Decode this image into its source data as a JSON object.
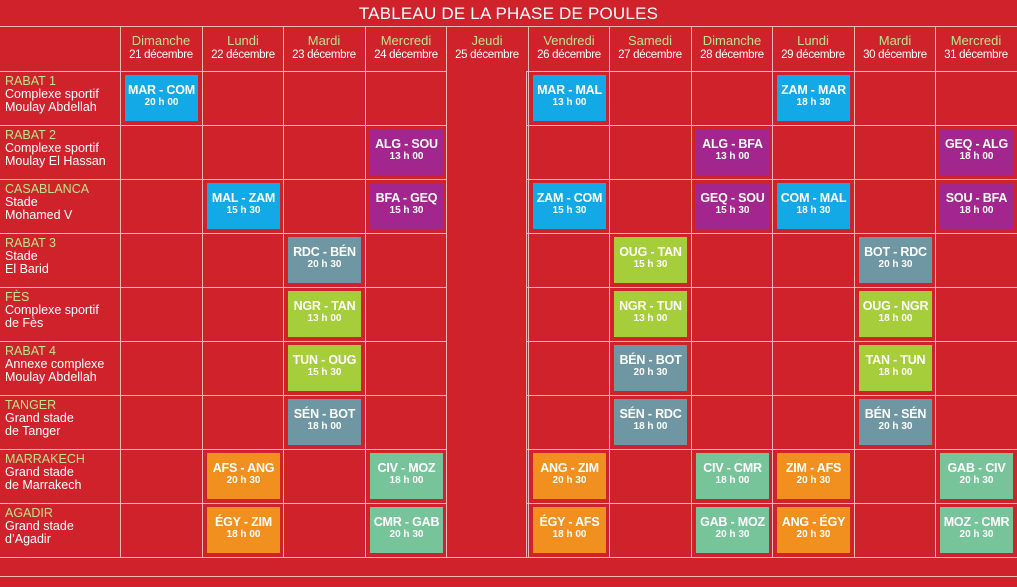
{
  "title": "TABLEAU DE LA PHASE DE POULES",
  "colors": {
    "background": "#d0222a",
    "blue": "#13a9e6",
    "purple": "#a3268f",
    "lime": "#a6cd3a",
    "slate": "#6e97a3",
    "orange": "#f1901e",
    "green": "#77c49a",
    "city_label": "#bfe38a"
  },
  "days": [
    {
      "name": "Dimanche",
      "date": "21 décembre"
    },
    {
      "name": "Lundi",
      "date": "22 décembre"
    },
    {
      "name": "Mardi",
      "date": "23 décembre"
    },
    {
      "name": "Mercredi",
      "date": "24 décembre"
    },
    {
      "name": "Jeudi",
      "date": "25 décembre"
    },
    {
      "name": "Vendredi",
      "date": "26 décembre"
    },
    {
      "name": "Samedi",
      "date": "27 décembre"
    },
    {
      "name": "Dimanche",
      "date": "28 décembre"
    },
    {
      "name": "Lundi",
      "date": "29 décembre"
    },
    {
      "name": "Mardi",
      "date": "30 décembre"
    },
    {
      "name": "Mercredi",
      "date": "31 décembre"
    }
  ],
  "venues": [
    {
      "city": "RABAT 1",
      "stadium_1": "Complexe sportif",
      "stadium_2": "Moulay Abdellah"
    },
    {
      "city": "RABAT 2",
      "stadium_1": "Complexe sportif",
      "stadium_2": "Moulay El Hassan"
    },
    {
      "city": "CASABLANCA",
      "stadium_1": "Stade",
      "stadium_2": "Mohamed V"
    },
    {
      "city": "RABAT 3",
      "stadium_1": "Stade",
      "stadium_2": "El Barid"
    },
    {
      "city": "FÈS",
      "stadium_1": "Complexe sportif",
      "stadium_2": "de Fès"
    },
    {
      "city": "RABAT 4",
      "stadium_1": "Annexe complexe",
      "stadium_2": "Moulay Abdellah"
    },
    {
      "city": "TANGER",
      "stadium_1": "Grand stade",
      "stadium_2": "de Tanger"
    },
    {
      "city": "MARRAKECH",
      "stadium_1": "Grand stade",
      "stadium_2": "de Marrakech"
    },
    {
      "city": "AGADIR",
      "stadium_1": "Grand stade",
      "stadium_2": "d’Agadir"
    }
  ],
  "matches": [
    {
      "venue": 0,
      "day": 0,
      "teams": "MAR - COM",
      "time": "20 h 00",
      "color": "blue"
    },
    {
      "venue": 0,
      "day": 5,
      "teams": "MAR - MAL",
      "time": "13 h 00",
      "color": "blue"
    },
    {
      "venue": 0,
      "day": 8,
      "teams": "ZAM - MAR",
      "time": "18 h 30",
      "color": "blue"
    },
    {
      "venue": 1,
      "day": 3,
      "teams": "ALG - SOU",
      "time": "13 h 00",
      "color": "purple"
    },
    {
      "venue": 1,
      "day": 7,
      "teams": "ALG - BFA",
      "time": "13 h 00",
      "color": "purple"
    },
    {
      "venue": 1,
      "day": 10,
      "teams": "GEQ - ALG",
      "time": "18 h 00",
      "color": "purple"
    },
    {
      "venue": 2,
      "day": 1,
      "teams": "MAL - ZAM",
      "time": "15 h 30",
      "color": "blue"
    },
    {
      "venue": 2,
      "day": 3,
      "teams": "BFA - GEQ",
      "time": "15 h 30",
      "color": "purple"
    },
    {
      "venue": 2,
      "day": 5,
      "teams": "ZAM - COM",
      "time": "15 h 30",
      "color": "blue"
    },
    {
      "venue": 2,
      "day": 7,
      "teams": "GEQ - SOU",
      "time": "15 h 30",
      "color": "purple"
    },
    {
      "venue": 2,
      "day": 8,
      "teams": "COM - MAL",
      "time": "18 h 30",
      "color": "blue"
    },
    {
      "venue": 2,
      "day": 10,
      "teams": "SOU - BFA",
      "time": "18 h 00",
      "color": "purple"
    },
    {
      "venue": 3,
      "day": 2,
      "teams": "RDC - BÉN",
      "time": "20 h 30",
      "color": "slate"
    },
    {
      "venue": 3,
      "day": 6,
      "teams": "OUG - TAN",
      "time": "15 h 30",
      "color": "lime"
    },
    {
      "venue": 3,
      "day": 9,
      "teams": "BOT - RDC",
      "time": "20 h 30",
      "color": "slate"
    },
    {
      "venue": 4,
      "day": 2,
      "teams": "NGR - TAN",
      "time": "13 h 00",
      "color": "lime"
    },
    {
      "venue": 4,
      "day": 6,
      "teams": "NGR - TUN",
      "time": "13 h 00",
      "color": "lime"
    },
    {
      "venue": 4,
      "day": 9,
      "teams": "OUG - NGR",
      "time": "18 h 00",
      "color": "lime"
    },
    {
      "venue": 5,
      "day": 2,
      "teams": "TUN - OUG",
      "time": "15 h 30",
      "color": "lime"
    },
    {
      "venue": 5,
      "day": 6,
      "teams": "BÉN - BOT",
      "time": "20 h 30",
      "color": "slate"
    },
    {
      "venue": 5,
      "day": 9,
      "teams": "TAN - TUN",
      "time": "18 h 00",
      "color": "lime"
    },
    {
      "venue": 6,
      "day": 2,
      "teams": "SÉN - BOT",
      "time": "18 h 00",
      "color": "slate"
    },
    {
      "venue": 6,
      "day": 6,
      "teams": "SÉN - RDC",
      "time": "18 h 00",
      "color": "slate"
    },
    {
      "venue": 6,
      "day": 9,
      "teams": "BÉN - SÉN",
      "time": "20 h 30",
      "color": "slate"
    },
    {
      "venue": 7,
      "day": 1,
      "teams": "AFS - ANG",
      "time": "20 h 30",
      "color": "orange"
    },
    {
      "venue": 7,
      "day": 3,
      "teams": "CIV - MOZ",
      "time": "18 h 00",
      "color": "green"
    },
    {
      "venue": 7,
      "day": 5,
      "teams": "ANG - ZIM",
      "time": "20 h 30",
      "color": "orange"
    },
    {
      "venue": 7,
      "day": 7,
      "teams": "CIV - CMR",
      "time": "18 h 00",
      "color": "green"
    },
    {
      "venue": 7,
      "day": 8,
      "teams": "ZIM - AFS",
      "time": "20 h 30",
      "color": "orange"
    },
    {
      "venue": 7,
      "day": 10,
      "teams": "GAB - CIV",
      "time": "20 h 30",
      "color": "green"
    },
    {
      "venue": 8,
      "day": 1,
      "teams": "ÉGY - ZIM",
      "time": "18 h 00",
      "color": "orange"
    },
    {
      "venue": 8,
      "day": 3,
      "teams": "CMR - GAB",
      "time": "20 h 30",
      "color": "green"
    },
    {
      "venue": 8,
      "day": 5,
      "teams": "ÉGY - AFS",
      "time": "18 h 00",
      "color": "orange"
    },
    {
      "venue": 8,
      "day": 7,
      "teams": "GAB - MOZ",
      "time": "20 h 30",
      "color": "green"
    },
    {
      "venue": 8,
      "day": 8,
      "teams": "ANG - ÉGY",
      "time": "20 h 30",
      "color": "orange"
    },
    {
      "venue": 8,
      "day": 10,
      "teams": "MOZ - CMR",
      "time": "20 h 30",
      "color": "green"
    }
  ]
}
